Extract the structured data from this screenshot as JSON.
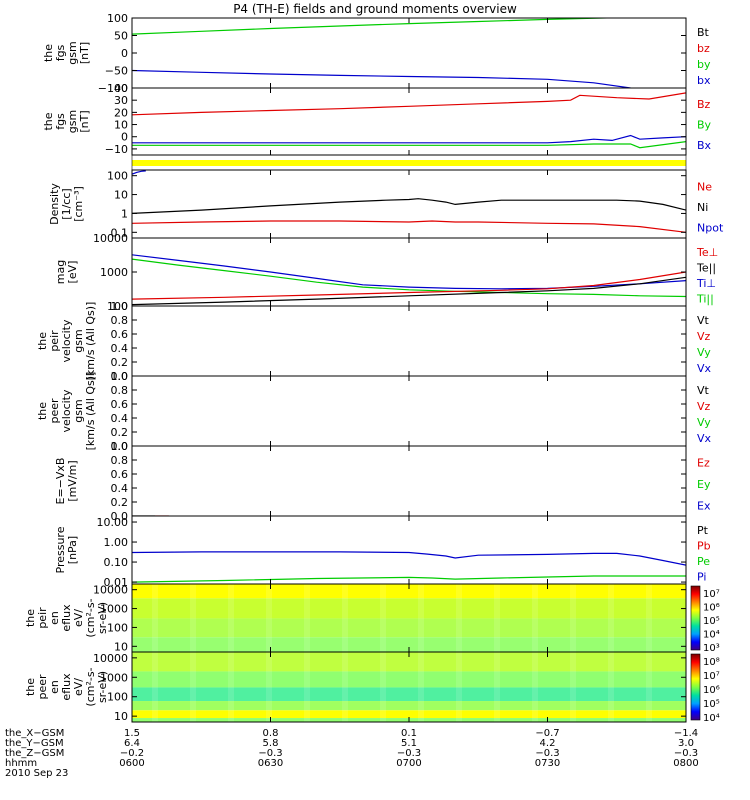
{
  "title": "P4 (TH-E) fields and ground moments overview",
  "colors": {
    "black": "#000000",
    "red": "#e00000",
    "green": "#00cc00",
    "blue": "#0000cc",
    "yellow": "#ffff00"
  },
  "icons": [
    "colorbar-icon"
  ],
  "chart_data": [
    {
      "type": "line",
      "ylabel": [
        "the",
        "fgs",
        "gsm",
        "[nT]"
      ],
      "ylim": [
        -100,
        100
      ],
      "yticks": [
        {
          "v": 100,
          "t": "100"
        },
        {
          "v": 50,
          "t": "50"
        },
        {
          "v": 0,
          "t": "0"
        },
        {
          "v": -50,
          "t": "−50"
        },
        {
          "v": -100,
          "t": "−100"
        }
      ],
      "legend": [
        {
          "name": "Bt",
          "color": "#000000"
        },
        {
          "name": "bz",
          "color": "#e00000"
        },
        {
          "name": "by",
          "color": "#00cc00"
        },
        {
          "name": "bx",
          "color": "#0000cc"
        }
      ],
      "series": [
        {
          "color": "#00cc00",
          "x": [
            0,
            15,
            30,
            45,
            60,
            75,
            90,
            105,
            120
          ],
          "y": [
            54,
            62,
            70,
            77,
            84,
            90,
            96,
            101,
            106
          ]
        },
        {
          "color": "#0000cc",
          "x": [
            0,
            15,
            30,
            45,
            60,
            75,
            90,
            100,
            108,
            120
          ],
          "y": [
            -50,
            -55,
            -60,
            -64,
            -67,
            -70,
            -75,
            -85,
            -100,
            -105
          ]
        }
      ]
    },
    {
      "type": "line",
      "ylabel": [
        "the",
        "fgs",
        "gsm",
        "[nT]"
      ],
      "ylim": [
        -15,
        40
      ],
      "yticks": [
        {
          "v": 40,
          "t": "40"
        },
        {
          "v": 30,
          "t": "30"
        },
        {
          "v": 20,
          "t": "20"
        },
        {
          "v": 10,
          "t": "10"
        },
        {
          "v": 0,
          "t": "0"
        },
        {
          "v": -10,
          "t": "−10"
        }
      ],
      "legend": [
        {
          "name": "Bz",
          "color": "#e00000"
        },
        {
          "name": "By",
          "color": "#00cc00"
        },
        {
          "name": "Bx",
          "color": "#0000cc"
        }
      ],
      "series": [
        {
          "color": "#e00000",
          "x": [
            0,
            15,
            30,
            45,
            60,
            75,
            90,
            95,
            97,
            105,
            112,
            120
          ],
          "y": [
            18,
            20,
            21.5,
            23,
            25,
            27,
            29,
            30,
            34,
            32,
            31,
            36
          ]
        },
        {
          "color": "#0000cc",
          "x": [
            0,
            30,
            60,
            90,
            95,
            100,
            104,
            108,
            110,
            115,
            120
          ],
          "y": [
            -5,
            -5,
            -5,
            -5,
            -4,
            -2,
            -3,
            1,
            -2,
            -1,
            0
          ]
        },
        {
          "color": "#00cc00",
          "x": [
            0,
            30,
            60,
            90,
            100,
            108,
            110,
            120
          ],
          "y": [
            -7,
            -7,
            -7,
            -7,
            -6,
            -6,
            -9,
            -4
          ]
        }
      ]
    },
    {
      "type": "line",
      "ylabel": [
        "Density",
        "[1/cc]",
        "[cm⁻³]"
      ],
      "ylim": [
        0.05,
        200
      ],
      "yscale": "log",
      "yticks": [
        {
          "v": 100,
          "t": "100"
        },
        {
          "v": 10,
          "t": "10"
        },
        {
          "v": 1,
          "t": "1"
        },
        {
          "v": 0.1,
          "t": "0.1"
        }
      ],
      "legend": [
        {
          "name": "Ne",
          "color": "#e00000"
        },
        {
          "name": "Ni",
          "color": "#000000"
        },
        {
          "name": "Npot",
          "color": "#0000cc"
        }
      ],
      "series": [
        {
          "color": "#0000cc",
          "x": [
            0,
            1,
            2,
            3
          ],
          "y": [
            120,
            150,
            170,
            180
          ]
        },
        {
          "color": "#000000",
          "x": [
            0,
            15,
            30,
            45,
            55,
            60,
            62,
            65,
            68,
            70,
            75,
            80,
            90,
            100,
            105,
            110,
            115,
            120
          ],
          "y": [
            1,
            1.5,
            2.5,
            4,
            5,
            5.5,
            6,
            5,
            4,
            3,
            4,
            5,
            5,
            5,
            5,
            4.5,
            3,
            1.5
          ]
        },
        {
          "color": "#e00000",
          "x": [
            0,
            15,
            30,
            45,
            60,
            65,
            70,
            75,
            90,
            100,
            110,
            120
          ],
          "y": [
            0.3,
            0.35,
            0.4,
            0.4,
            0.35,
            0.4,
            0.35,
            0.35,
            0.3,
            0.28,
            0.2,
            0.1
          ]
        }
      ]
    },
    {
      "type": "line",
      "ylabel": [
        "mag",
        "[eV]"
      ],
      "ylim": [
        100,
        10000
      ],
      "yscale": "log",
      "yticks": [
        {
          "v": 10000,
          "t": "10000"
        },
        {
          "v": 1000,
          "t": "1000"
        },
        {
          "v": 100,
          "t": "100"
        }
      ],
      "legend": [
        {
          "name": "Te⊥",
          "color": "#e00000"
        },
        {
          "name": "Te||",
          "color": "#000000"
        },
        {
          "name": "Ti⊥",
          "color": "#0000cc"
        },
        {
          "name": "Ti||",
          "color": "#00cc00"
        }
      ],
      "series": [
        {
          "color": "#0000cc",
          "x": [
            0,
            10,
            20,
            30,
            40,
            50,
            60,
            70,
            80,
            90,
            100,
            110,
            120
          ],
          "y": [
            3200,
            2200,
            1500,
            1000,
            650,
            420,
            360,
            330,
            320,
            330,
            380,
            450,
            560
          ]
        },
        {
          "color": "#00cc00",
          "x": [
            0,
            10,
            20,
            30,
            40,
            50,
            60,
            70,
            80,
            90,
            100,
            110,
            120
          ],
          "y": [
            2400,
            1600,
            1100,
            750,
            500,
            360,
            300,
            270,
            250,
            230,
            220,
            200,
            190
          ]
        },
        {
          "color": "#e00000",
          "x": [
            0,
            20,
            40,
            60,
            80,
            90,
            100,
            110,
            120
          ],
          "y": [
            160,
            180,
            210,
            250,
            290,
            320,
            400,
            600,
            1000
          ]
        },
        {
          "color": "#000000",
          "x": [
            0,
            20,
            40,
            60,
            80,
            90,
            100,
            110,
            120
          ],
          "y": [
            110,
            130,
            160,
            200,
            250,
            280,
            330,
            450,
            700
          ]
        }
      ]
    },
    {
      "type": "line",
      "ylabel": [
        "the",
        "peir",
        "velocity",
        "gsm",
        "[km/s (All Qs)]"
      ],
      "ylim": [
        0,
        1
      ],
      "yticks": [
        {
          "v": 1,
          "t": "1.0"
        },
        {
          "v": 0.8,
          "t": "0.8"
        },
        {
          "v": 0.6,
          "t": "0.6"
        },
        {
          "v": 0.4,
          "t": "0.4"
        },
        {
          "v": 0.2,
          "t": "0.2"
        },
        {
          "v": 0,
          "t": "0.0"
        }
      ],
      "legend": [
        {
          "name": "Vt",
          "color": "#000000"
        },
        {
          "name": "Vz",
          "color": "#e00000"
        },
        {
          "name": "Vy",
          "color": "#00cc00"
        },
        {
          "name": "Vx",
          "color": "#0000cc"
        }
      ],
      "series": []
    },
    {
      "type": "line",
      "ylabel": [
        "the",
        "peer",
        "velocity",
        "gsm",
        "[km/s (All Qs)]"
      ],
      "ylim": [
        0,
        1
      ],
      "yticks": [
        {
          "v": 1,
          "t": "1.0"
        },
        {
          "v": 0.8,
          "t": "0.8"
        },
        {
          "v": 0.6,
          "t": "0.6"
        },
        {
          "v": 0.4,
          "t": "0.4"
        },
        {
          "v": 0.2,
          "t": "0.2"
        },
        {
          "v": 0,
          "t": "0.0"
        }
      ],
      "legend": [
        {
          "name": "Vt",
          "color": "#000000"
        },
        {
          "name": "Vz",
          "color": "#e00000"
        },
        {
          "name": "Vy",
          "color": "#00cc00"
        },
        {
          "name": "Vx",
          "color": "#0000cc"
        }
      ],
      "series": []
    },
    {
      "type": "line",
      "ylabel": [
        "E=−VxB",
        "[mV/m]"
      ],
      "ylim": [
        0,
        1
      ],
      "yticks": [
        {
          "v": 1,
          "t": "1.0"
        },
        {
          "v": 0.8,
          "t": "0.8"
        },
        {
          "v": 0.6,
          "t": "0.6"
        },
        {
          "v": 0.4,
          "t": "0.4"
        },
        {
          "v": 0.2,
          "t": "0.2"
        },
        {
          "v": 0,
          "t": "0.0"
        }
      ],
      "legend": [
        {
          "name": "Ez",
          "color": "#e00000"
        },
        {
          "name": "Ey",
          "color": "#00cc00"
        },
        {
          "name": "Ex",
          "color": "#0000cc"
        }
      ],
      "series": [
        {
          "color": "#000000",
          "x": [
            0,
            5
          ],
          "y": [
            0,
            0
          ]
        },
        {
          "color": "#e00000",
          "x": [
            5,
            8
          ],
          "y": [
            0,
            0
          ]
        }
      ]
    },
    {
      "type": "line",
      "ylabel": [
        "Pressure",
        "[nPa]"
      ],
      "ylim": [
        0.008,
        20
      ],
      "yscale": "log",
      "yticks": [
        {
          "v": 10,
          "t": "10.00"
        },
        {
          "v": 1,
          "t": "1.00"
        },
        {
          "v": 0.1,
          "t": "0.10"
        },
        {
          "v": 0.01,
          "t": "0.01"
        }
      ],
      "legend": [
        {
          "name": "Pt",
          "color": "#000000"
        },
        {
          "name": "Pb",
          "color": "#e00000"
        },
        {
          "name": "Pe",
          "color": "#00cc00"
        },
        {
          "name": "Pi",
          "color": "#0000cc"
        }
      ],
      "series": [
        {
          "color": "#0000cc",
          "x": [
            0,
            15,
            30,
            45,
            60,
            64,
            68,
            70,
            75,
            90,
            100,
            105,
            110,
            115,
            120
          ],
          "y": [
            0.3,
            0.32,
            0.32,
            0.32,
            0.3,
            0.25,
            0.2,
            0.16,
            0.22,
            0.24,
            0.27,
            0.27,
            0.2,
            0.12,
            0.07
          ]
        },
        {
          "color": "#00cc00",
          "x": [
            0,
            20,
            40,
            60,
            65,
            70,
            80,
            90,
            100,
            110,
            120
          ],
          "y": [
            0.01,
            0.012,
            0.015,
            0.017,
            0.016,
            0.014,
            0.016,
            0.018,
            0.02,
            0.02,
            0.02
          ]
        }
      ]
    },
    {
      "type": "heatmap",
      "ylabel": [
        "the",
        "peir",
        "en",
        "eflux",
        "eV/",
        "(cm²-s-",
        "sr-eV)"
      ],
      "yscale": "log",
      "ylim": [
        5,
        20000
      ],
      "yticks": [
        {
          "v": 10000,
          "t": "10000"
        },
        {
          "v": 1000,
          "t": "1000"
        },
        {
          "v": 100,
          "t": "100"
        },
        {
          "v": 10,
          "t": "10"
        }
      ],
      "colorbar": {
        "ticks": [
          "10⁷",
          "10⁶",
          "10⁵",
          "10⁴",
          "10³"
        ]
      },
      "bands": [
        {
          "lo": 3500,
          "hi": 20000,
          "color": "#ffff00"
        },
        {
          "lo": 300,
          "hi": 3500,
          "color": "#c8ff30"
        },
        {
          "lo": 30,
          "hi": 300,
          "color": "#b0ff50"
        },
        {
          "lo": 5,
          "hi": 30,
          "color": "#98ff70"
        }
      ]
    },
    {
      "type": "heatmap",
      "ylabel": [
        "the",
        "peer",
        "en",
        "eflux",
        "eV/",
        "(cm²-s-",
        "sr-eV)"
      ],
      "yscale": "log",
      "ylim": [
        5,
        20000
      ],
      "yticks": [
        {
          "v": 10000,
          "t": "10000"
        },
        {
          "v": 1000,
          "t": "1000"
        },
        {
          "v": 100,
          "t": "100"
        },
        {
          "v": 10,
          "t": "10"
        }
      ],
      "colorbar": {
        "ticks": [
          "10⁸",
          "10⁷",
          "10⁶",
          "10⁵",
          "10⁴"
        ]
      },
      "bands": [
        {
          "lo": 2000,
          "hi": 20000,
          "color": "#c0ff40"
        },
        {
          "lo": 300,
          "hi": 2000,
          "color": "#90ff70"
        },
        {
          "lo": 60,
          "hi": 300,
          "color": "#50f0a0"
        },
        {
          "lo": 20,
          "hi": 60,
          "color": "#a0ff60"
        },
        {
          "lo": 8,
          "hi": 20,
          "color": "#ffff00"
        },
        {
          "lo": 5,
          "hi": 8,
          "color": "#90ff70"
        }
      ]
    }
  ],
  "xaxis": {
    "xlim": [
      0,
      120
    ],
    "rows": [
      {
        "label": "the_X−GSM",
        "values": [
          "1.5",
          "0.8",
          "0.1",
          "−0.7",
          "−1.4"
        ]
      },
      {
        "label": "the_Y−GSM",
        "values": [
          "6.4",
          "5.8",
          "5.1",
          "4.2",
          "3.0"
        ]
      },
      {
        "label": "the_Z−GSM",
        "values": [
          "−0.2",
          "−0.3",
          "−0.3",
          "−0.3",
          "−0.3"
        ]
      },
      {
        "label": "hhmm",
        "values": [
          "0600",
          "0630",
          "0700",
          "0730",
          "0800"
        ]
      }
    ],
    "tick_x": [
      0,
      30,
      60,
      90,
      120
    ],
    "date": "2010 Sep 23"
  }
}
